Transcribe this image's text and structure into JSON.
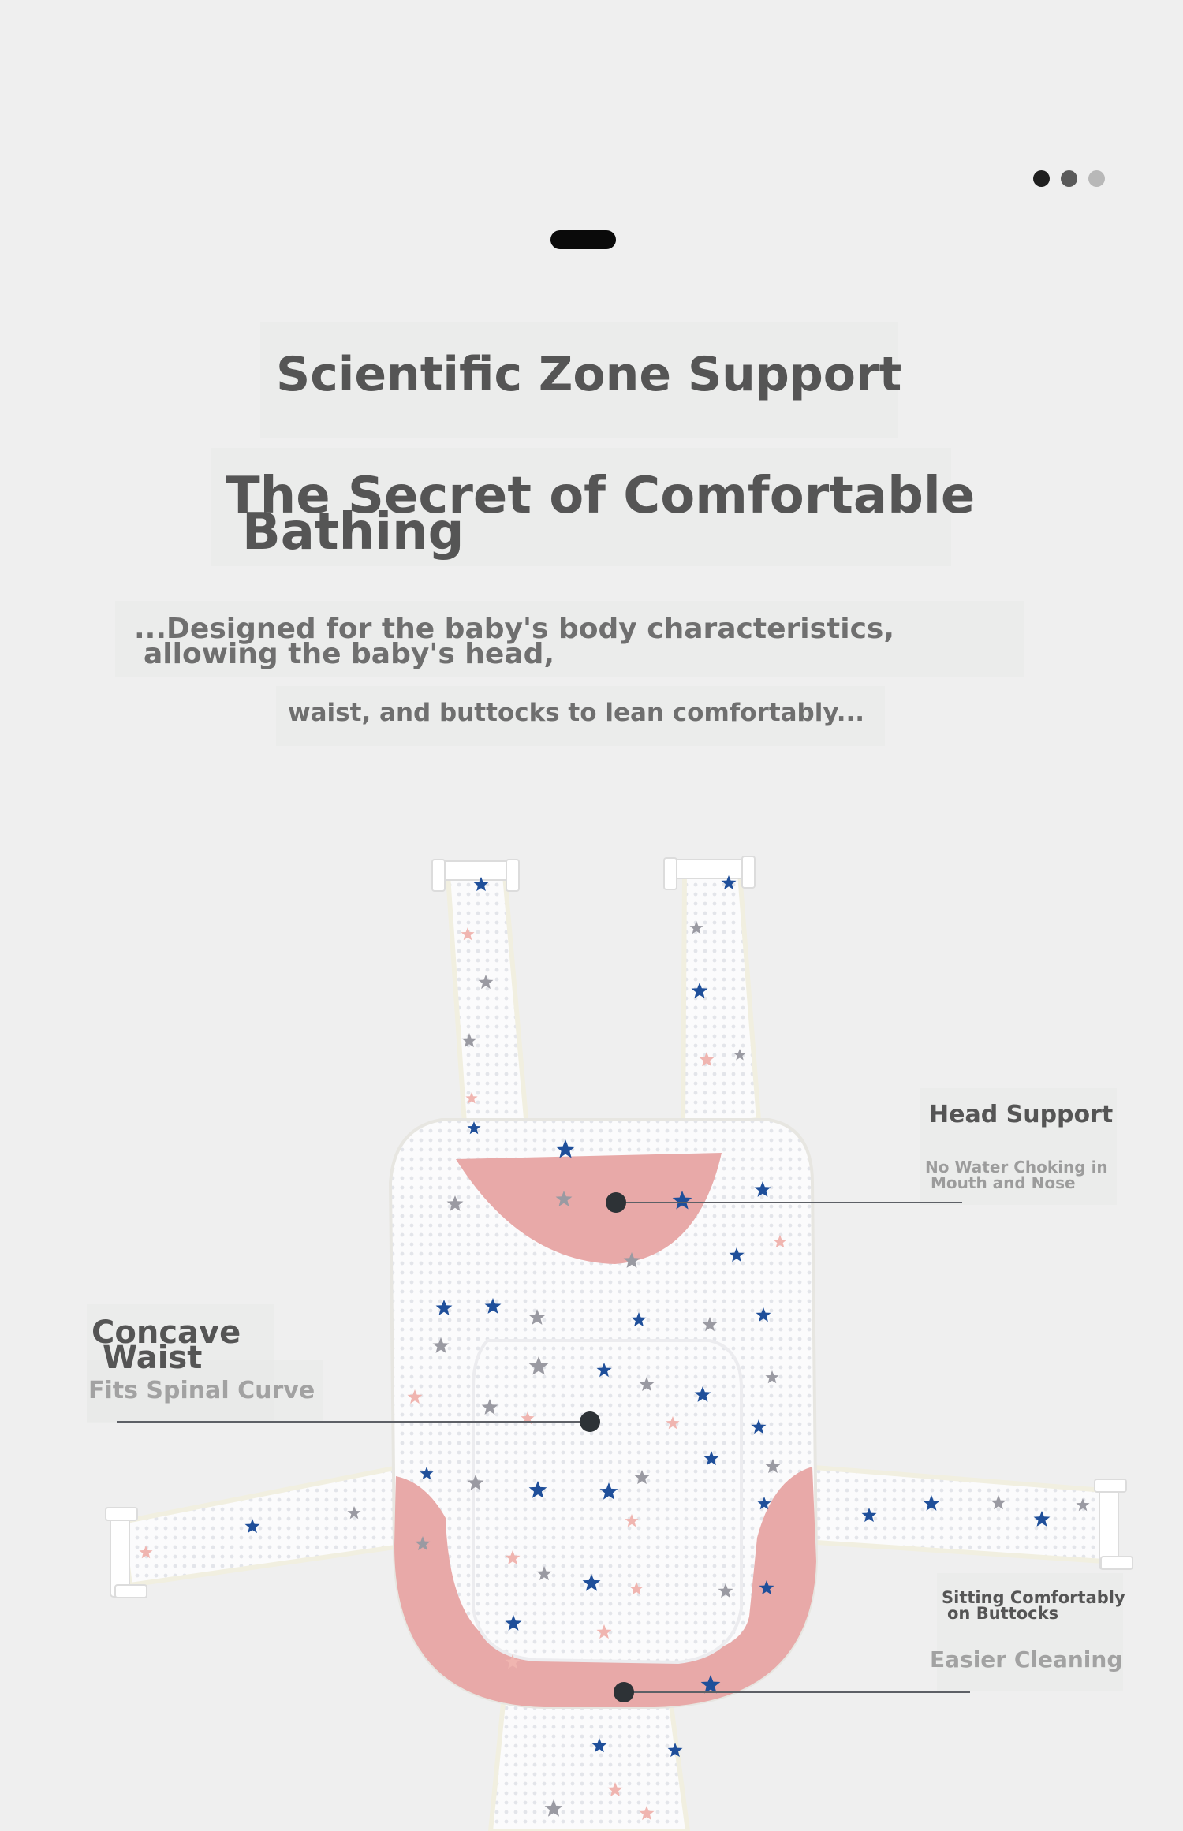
{
  "carousel": {
    "dot_colors": [
      "#1f1f1f",
      "#5a5a5a",
      "#b8b8b8"
    ]
  },
  "headline": {
    "title": "Scientific Zone Support",
    "subtitle_line1": "The Secret of Comfortable",
    "subtitle_line2": "Bathing"
  },
  "description": {
    "line1": "...Designed for the baby's body characteristics,",
    "line2": "allowing the baby's head,",
    "line3": "waist, and buttocks to lean comfortably..."
  },
  "callouts": {
    "head": {
      "title": "Head Support",
      "note_line1": "No Water Choking in",
      "note_line2": "Mouth and Nose"
    },
    "waist": {
      "title_line1": "Concave",
      "title_line2": "Waist",
      "note": "Fits Spinal Curve"
    },
    "buttocks": {
      "title_line1": "Sitting Comfortably",
      "title_line2": "on Buttocks",
      "note": "Easier Cleaning"
    }
  },
  "colors": {
    "background": "#efefef",
    "heading_text": "#555555",
    "pink_pad": "#e8a9a8",
    "star_blue": "#1f4f9a",
    "star_pink": "#f0b5b0",
    "star_gray": "#9a9aa2"
  }
}
